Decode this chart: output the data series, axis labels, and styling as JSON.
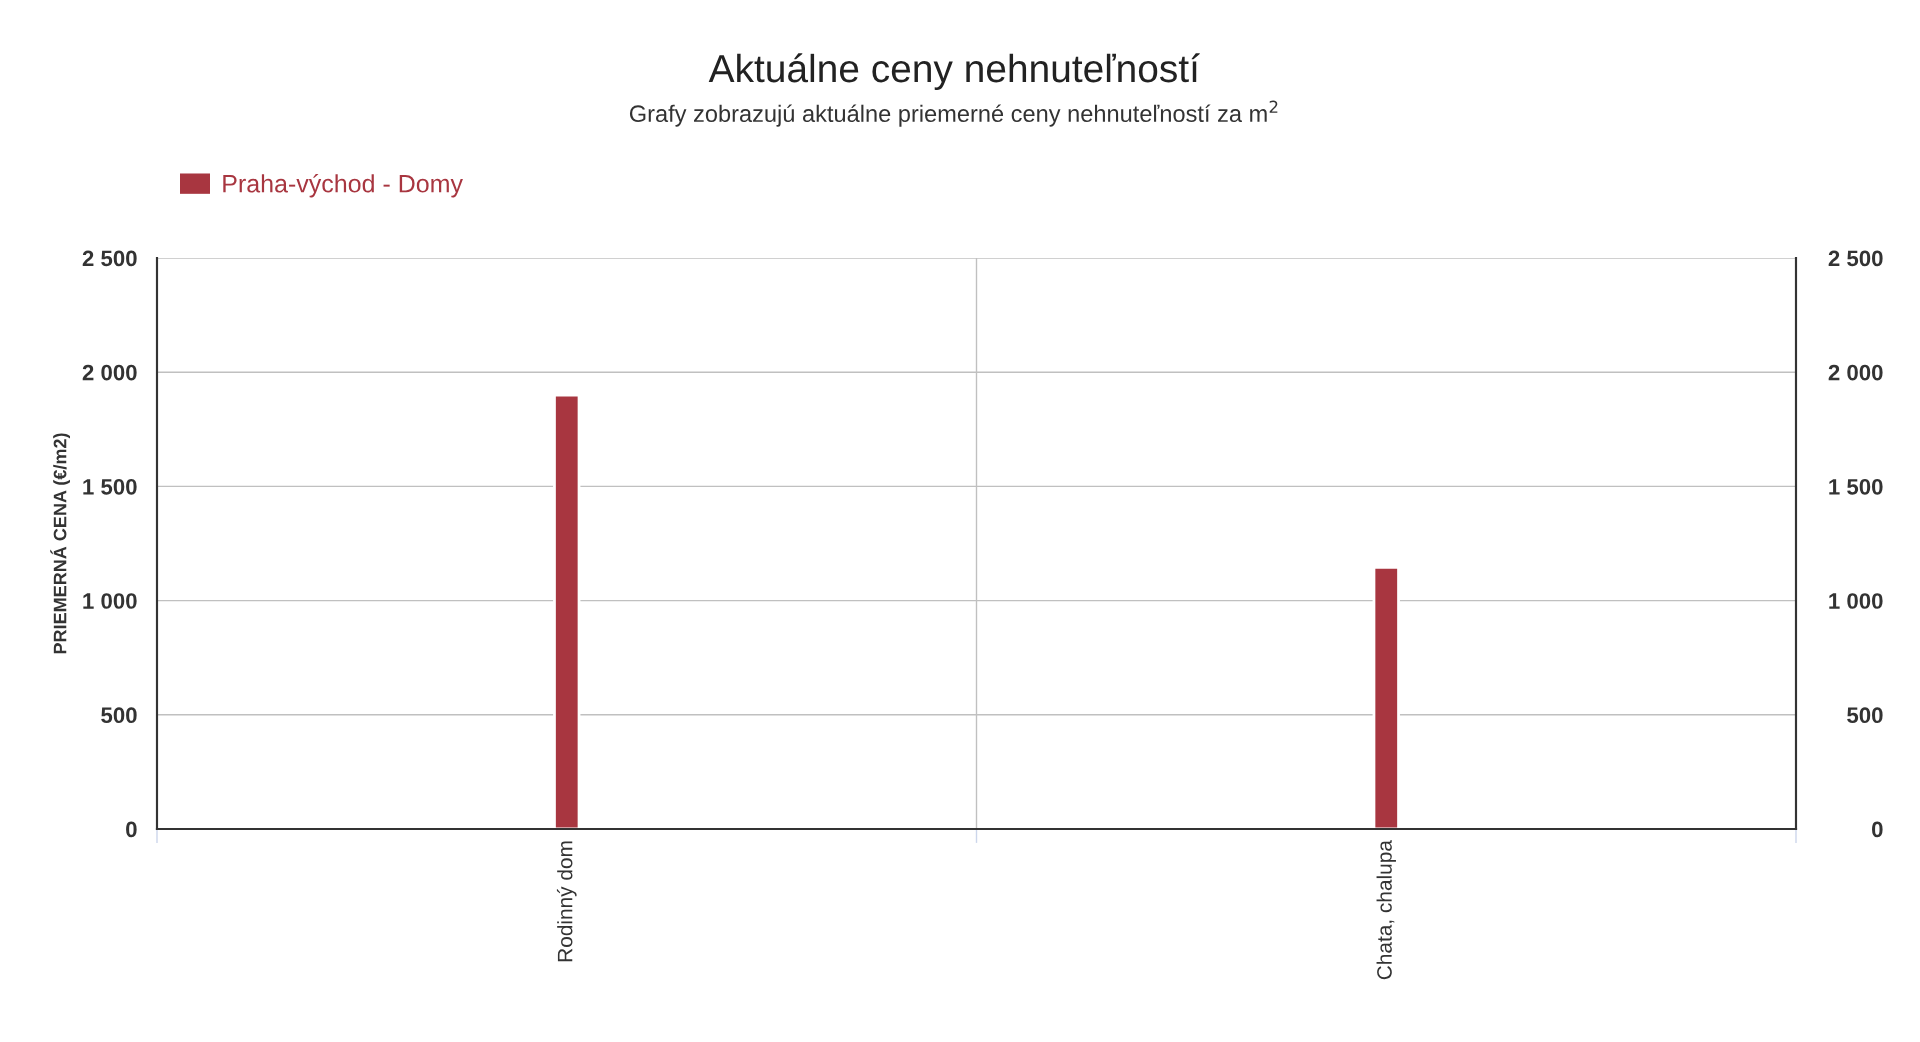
{
  "chart_data": {
    "type": "bar",
    "title": "Aktuálne ceny nehnuteľností",
    "subtitle": "Grafy zobrazujú aktuálne priemerné ceny nehnuteľností za m$^{2}$",
    "ylabel": "PRIEMERNÁ CENA (€/m2)",
    "categories": [
      "Rodinný dom",
      "Chata, chalupa"
    ],
    "series": [
      {
        "name": "Praha-východ - Domy",
        "color": "#a83640",
        "values": [
          1900,
          1145
        ]
      }
    ],
    "ylim": [
      0,
      2500
    ],
    "yticks": [
      0,
      500,
      {
        "value": 1000,
        "label": "1 000"
      },
      {
        "value": 1500,
        "label": "1 500"
      },
      {
        "value": 2000,
        "label": "2 000"
      },
      {
        "value": 2500,
        "label": "2 500"
      }
    ],
    "y2lim": [
      0,
      2500
    ],
    "y2ticks": [
      0,
      500,
      {
        "value": 1000,
        "label": "1 000"
      },
      {
        "value": 1500,
        "label": "1 500"
      },
      {
        "value": 2000,
        "label": "2 000"
      },
      {
        "value": 2500,
        "label": "2 500"
      }
    ],
    "grid": true,
    "legend": "top left"
  }
}
